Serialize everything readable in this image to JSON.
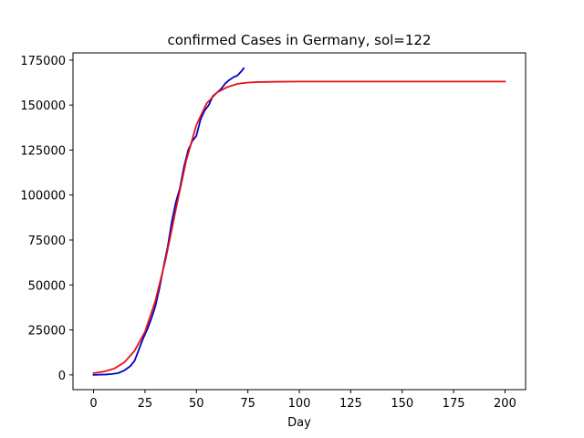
{
  "chart_data": {
    "type": "line",
    "title": "confirmed Cases in Germany, sol=122",
    "xlabel": "Day",
    "ylabel": "",
    "xlim": [
      -10,
      210
    ],
    "ylim": [
      -8200,
      179000
    ],
    "xticks": [
      0,
      25,
      50,
      75,
      100,
      125,
      150,
      175,
      200
    ],
    "yticks": [
      0,
      25000,
      50000,
      75000,
      100000,
      125000,
      150000,
      175000
    ],
    "grid": false,
    "series": [
      {
        "color": "#0000cc",
        "x": [
          0,
          3,
          6,
          9,
          12,
          15,
          18,
          20,
          22,
          24,
          26,
          28,
          30,
          32,
          34,
          36,
          38,
          40,
          42,
          44,
          46,
          48,
          50,
          52,
          54,
          56,
          58,
          60,
          62,
          64,
          66,
          68,
          70,
          72,
          73
        ],
        "y": [
          0,
          100,
          200,
          500,
          1000,
          2500,
          5000,
          8000,
          14000,
          20000,
          25000,
          31000,
          38000,
          48000,
          60000,
          71000,
          85000,
          96000,
          104000,
          116000,
          125000,
          130000,
          133000,
          142000,
          147000,
          150000,
          155000,
          157000,
          159000,
          162000,
          164000,
          165500,
          166500,
          169000,
          170500
        ]
      },
      {
        "color": "#e81010",
        "x": [
          0,
          5,
          10,
          15,
          20,
          25,
          30,
          35,
          40,
          45,
          50,
          55,
          60,
          65,
          70,
          75,
          80,
          90,
          100,
          125,
          150,
          175,
          200
        ],
        "y": [
          1000,
          1800,
          3500,
          7000,
          13500,
          24000,
          41000,
          64000,
          92000,
          119000,
          139000,
          151000,
          157000,
          160000,
          161800,
          162500,
          162800,
          163000,
          163100,
          163100,
          163100,
          163100,
          163100
        ]
      }
    ]
  }
}
